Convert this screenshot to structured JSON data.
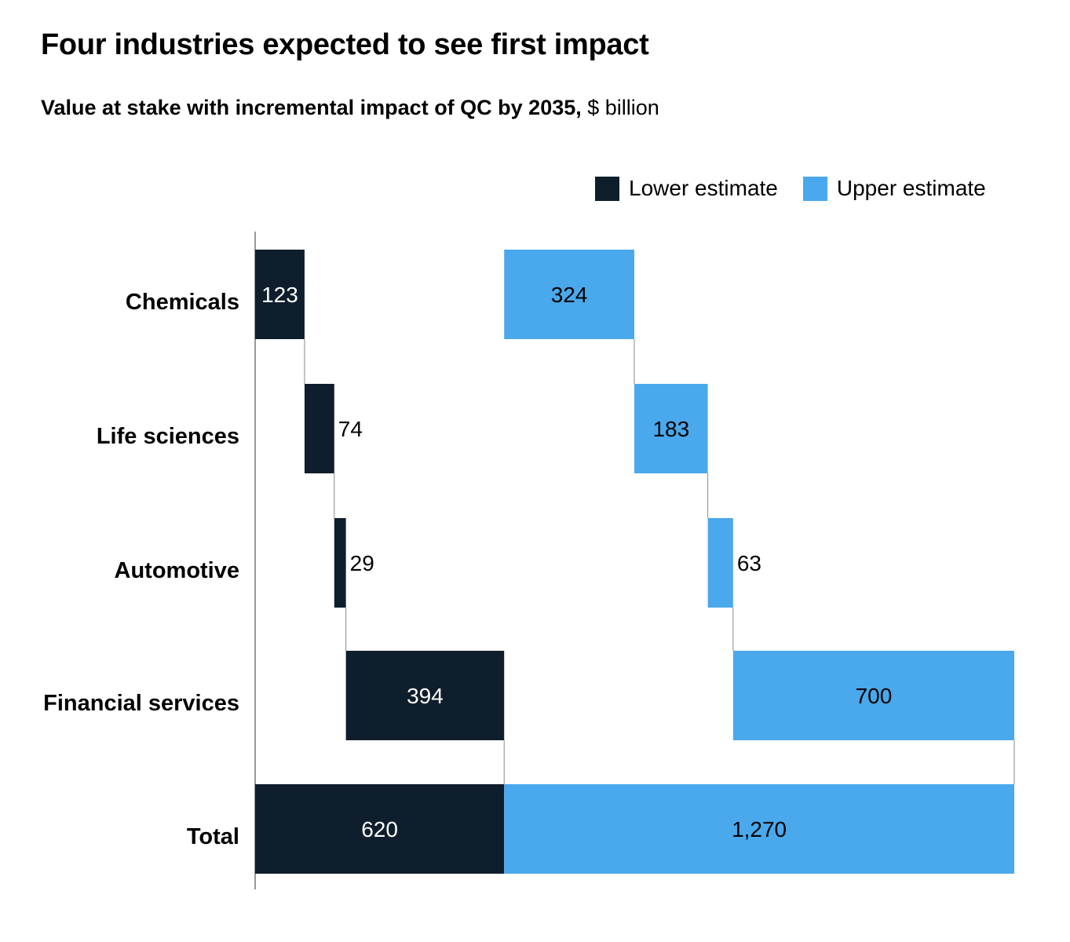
{
  "header": {
    "title": "Four industries expected to see first impact",
    "subtitle_bold": "Value at stake with incremental impact of QC by 2035,",
    "subtitle_unit": " $ billion"
  },
  "legend": {
    "items": [
      {
        "label": "Lower estimate",
        "color": "#0e1e2c"
      },
      {
        "label": "Upper estimate",
        "color": "#4aa8ec"
      }
    ]
  },
  "chart_data": {
    "type": "bar",
    "subtype": "waterfall",
    "categories": [
      "Chemicals",
      "Life sciences",
      "Automotive",
      "Financial services",
      "Total"
    ],
    "series": [
      {
        "name": "Lower estimate",
        "color": "#0e1e2c",
        "values": [
          123,
          74,
          29,
          394,
          620
        ],
        "labels": [
          "123",
          "74",
          "29",
          "394",
          "620"
        ]
      },
      {
        "name": "Upper estimate",
        "color": "#4aa8ec",
        "values": [
          324,
          183,
          63,
          700,
          1270
        ],
        "labels": [
          "324",
          "183",
          "63",
          "700",
          "1,270"
        ]
      }
    ],
    "total_category": "Total",
    "title": "Four industries expected to see first impact",
    "subtitle": "Value at stake with incremental impact of QC by 2035, $ billion",
    "legend": "top-right",
    "grid": false,
    "xlim": [
      0,
      1290
    ]
  }
}
